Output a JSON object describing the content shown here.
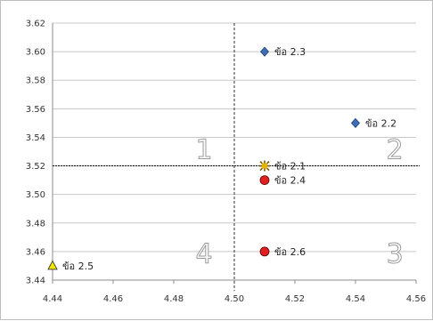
{
  "chart_data": {
    "type": "scatter",
    "title": "",
    "xlabel": "",
    "ylabel": "",
    "xlim": [
      4.44,
      4.56
    ],
    "ylim": [
      3.44,
      3.62
    ],
    "x_ticks": [
      "4.44",
      "4.46",
      "4.48",
      "4.50",
      "4.52",
      "4.54",
      "4.56"
    ],
    "y_ticks": [
      "3.62",
      "3.60",
      "3.58",
      "3.56",
      "3.54",
      "3.52",
      "3.50",
      "3.48",
      "3.46",
      "3.44"
    ],
    "grid": "horizontal",
    "reference_lines": {
      "x": 4.5,
      "y": 3.52
    },
    "quadrant_labels": [
      {
        "text": "1",
        "x": 4.49,
        "y": 3.525
      },
      {
        "text": "2",
        "x": 4.553,
        "y": 3.525
      },
      {
        "text": "3",
        "x": 4.553,
        "y": 3.452
      },
      {
        "text": "4",
        "x": 4.49,
        "y": 3.452
      }
    ],
    "points": [
      {
        "label": "ข้อ 2.3",
        "x": 4.51,
        "y": 3.6,
        "marker": "diamond",
        "color": "#3d6fb6"
      },
      {
        "label": "ข้อ 2.2",
        "x": 4.54,
        "y": 3.55,
        "marker": "diamond",
        "color": "#3d6fb6"
      },
      {
        "label": "ข้อ 2.1",
        "x": 4.51,
        "y": 3.52,
        "marker": "star",
        "color": "#e2b400"
      },
      {
        "label": "ข้อ 2.4",
        "x": 4.51,
        "y": 3.51,
        "marker": "circle",
        "color": "#e02020"
      },
      {
        "label": "ข้อ 2.6",
        "x": 4.51,
        "y": 3.46,
        "marker": "circle",
        "color": "#e02020"
      },
      {
        "label": "ข้อ 2.5",
        "x": 4.44,
        "y": 3.45,
        "marker": "triangle",
        "color": "#f2e600"
      }
    ]
  }
}
